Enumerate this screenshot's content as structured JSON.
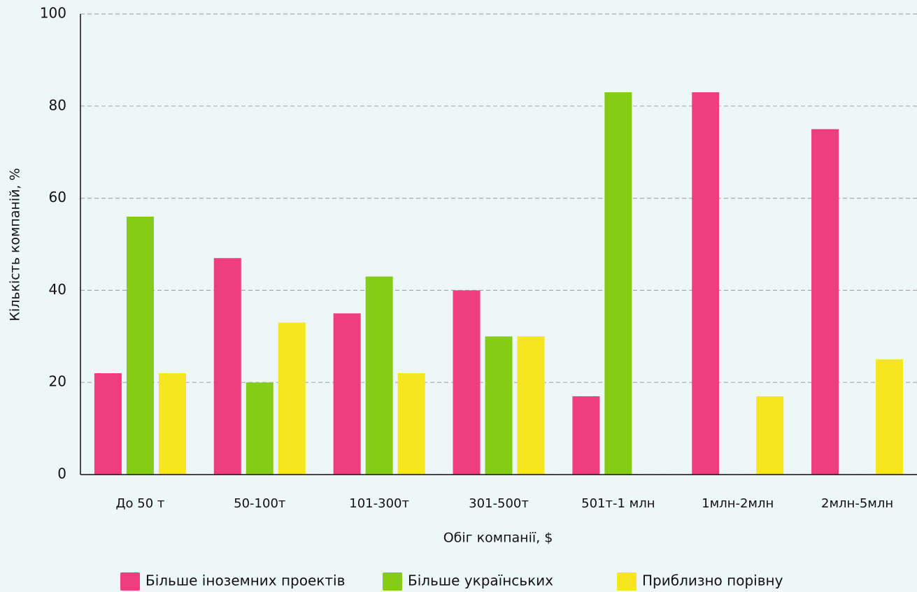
{
  "chart_data": {
    "type": "bar",
    "categories": [
      "До 50 т",
      "50-100т",
      "101-300т",
      "301-500т",
      "501т-1 млн",
      "1млн-2млн",
      "2млн-5млн"
    ],
    "series": [
      {
        "name": "Більше іноземних проектів",
        "color": "#ee3e80",
        "values": [
          22,
          47,
          35,
          40,
          17,
          83,
          75
        ]
      },
      {
        "name": "Більше українських",
        "color": "#84cc16",
        "values": [
          56,
          20,
          43,
          30,
          83,
          null,
          null
        ]
      },
      {
        "name": "Приблизно порівну",
        "color": "#f7e51f",
        "values": [
          22,
          33,
          22,
          30,
          null,
          17,
          25
        ]
      }
    ],
    "x_label": "Обіг компанії, $",
    "y_label": "Кількість компаній, %",
    "ylim": [
      0,
      100
    ],
    "yticks": [
      0,
      20,
      40,
      60,
      80,
      100
    ],
    "grid": true,
    "legend": "bottom"
  }
}
